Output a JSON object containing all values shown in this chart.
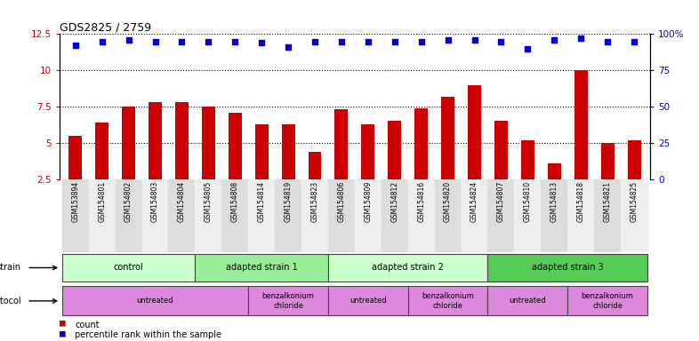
{
  "title": "GDS2825 / 2759",
  "samples": [
    "GSM153894",
    "GSM154801",
    "GSM154802",
    "GSM154803",
    "GSM154804",
    "GSM154805",
    "GSM154808",
    "GSM154814",
    "GSM154819",
    "GSM154823",
    "GSM154806",
    "GSM154809",
    "GSM154812",
    "GSM154816",
    "GSM154820",
    "GSM154824",
    "GSM154807",
    "GSM154810",
    "GSM154813",
    "GSM154818",
    "GSM154821",
    "GSM154825"
  ],
  "counts": [
    5.5,
    6.4,
    7.5,
    7.8,
    7.8,
    7.5,
    7.1,
    6.3,
    6.3,
    4.4,
    7.3,
    6.3,
    6.5,
    7.4,
    8.2,
    9.0,
    6.5,
    5.2,
    3.6,
    10.0,
    5.0,
    5.2
  ],
  "percentile_ranks": [
    92,
    95,
    96,
    95,
    95,
    95,
    95,
    94,
    91,
    95,
    95,
    95,
    95,
    95,
    96,
    96,
    95,
    90,
    96,
    97,
    95,
    95
  ],
  "ylim_left": [
    2.5,
    12.5
  ],
  "ylim_right": [
    0,
    100
  ],
  "yticks_left": [
    2.5,
    5.0,
    7.5,
    10.0,
    12.5
  ],
  "yticks_right": [
    0,
    25,
    50,
    75,
    100
  ],
  "bar_color": "#cc0000",
  "dot_color": "#0000cc",
  "strain_groups": [
    {
      "label": "control",
      "start": 0,
      "end": 4,
      "color": "#ccffcc"
    },
    {
      "label": "adapted strain 1",
      "start": 5,
      "end": 9,
      "color": "#99ee99"
    },
    {
      "label": "adapted strain 2",
      "start": 10,
      "end": 15,
      "color": "#ccffcc"
    },
    {
      "label": "adapted strain 3",
      "start": 16,
      "end": 21,
      "color": "#55cc55"
    }
  ],
  "protocol_groups": [
    {
      "label": "untreated",
      "start": 0,
      "end": 6,
      "color": "#dd88dd"
    },
    {
      "label": "benzalkonium\nchloride",
      "start": 7,
      "end": 9,
      "color": "#cc77cc"
    },
    {
      "label": "untreated",
      "start": 10,
      "end": 12,
      "color": "#dd88dd"
    },
    {
      "label": "benzalkonium\nchloride",
      "start": 13,
      "end": 15,
      "color": "#cc77cc"
    },
    {
      "label": "untreated",
      "start": 16,
      "end": 18,
      "color": "#dd88dd"
    },
    {
      "label": "benzalkonium\nchloride",
      "start": 19,
      "end": 21,
      "color": "#cc77cc"
    }
  ],
  "legend_count_label": "count",
  "legend_pct_label": "percentile rank within the sample"
}
